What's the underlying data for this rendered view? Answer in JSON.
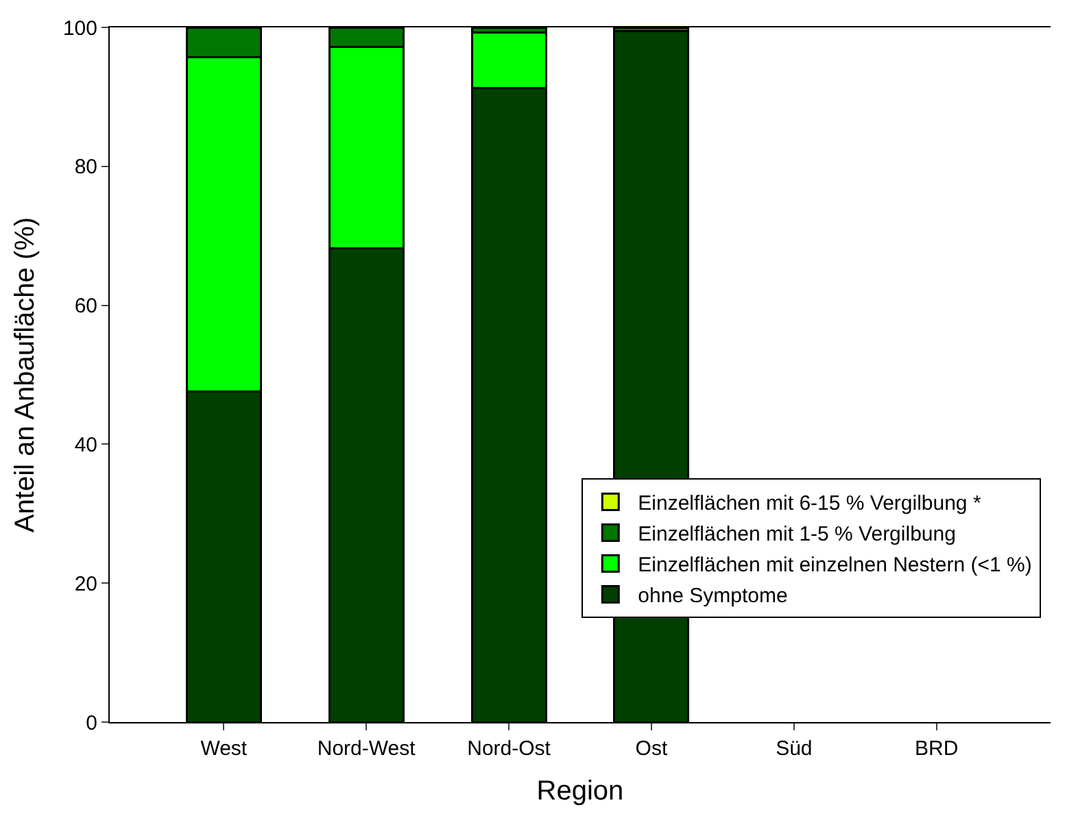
{
  "chart_data": {
    "type": "bar",
    "stacked": true,
    "xlabel": "Region",
    "ylabel": "Anteil an Anbaufläche (%)",
    "categories": [
      "West",
      "Nord-West",
      "Nord-Ost",
      "Ost",
      "Süd",
      "BRD"
    ],
    "series": [
      {
        "name": "ohne Symptome",
        "color": "#003f00",
        "values": [
          47.6,
          68.2,
          91.3,
          99.5,
          null,
          null
        ]
      },
      {
        "name": "Einzelflächen mit einzelnen Nestern (<1 %)",
        "color": "#00ff00",
        "values": [
          48.1,
          29.0,
          8.0,
          null,
          null,
          null
        ]
      },
      {
        "name": "Einzelflächen mit 1-5 % Vergilbung",
        "color": "#007800",
        "values": [
          4.3,
          2.8,
          0.7,
          0.5,
          null,
          null
        ]
      },
      {
        "name": "Einzelflächen mit 6-15 % Vergilbung *",
        "color": "#ccff00",
        "values": [
          null,
          null,
          null,
          null,
          null,
          null
        ]
      }
    ],
    "ylim": [
      0,
      100
    ],
    "yticks": [
      0,
      20,
      40,
      60,
      80,
      100
    ],
    "grid": false,
    "legend": "bottom right"
  }
}
